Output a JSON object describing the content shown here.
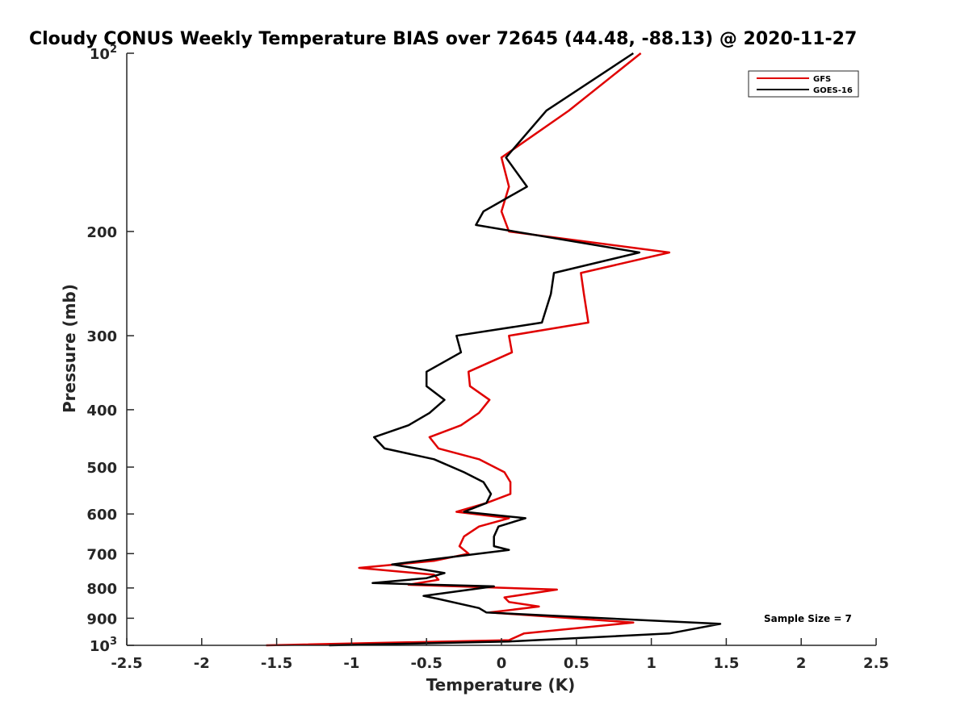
{
  "chart_data": {
    "type": "line",
    "title": "Cloudy CONUS Weekly Temperature BIAS over 72645 (44.48, -88.13) @ 2020-11-27",
    "xlabel": "Temperature (K)",
    "ylabel": "Pressure (mb)",
    "xlim": [
      -2.5,
      2.5
    ],
    "ylim": [
      100,
      1000
    ],
    "y_scale": "log",
    "y_reversed": true,
    "grid": false,
    "legend_position": "top-right",
    "x_ticks": [
      -2.5,
      -2,
      -1.5,
      -1,
      -0.5,
      0,
      0.5,
      1,
      1.5,
      2,
      2.5
    ],
    "x_tick_labels": [
      "-2.5",
      "-2",
      "-1.5",
      "-1",
      "-0.5",
      "0",
      "0.5",
      "1",
      "1.5",
      "2",
      "2.5"
    ],
    "y_ticks": [
      {
        "value": 100,
        "label": "10",
        "sup": "2"
      },
      {
        "value": 200,
        "label": "200",
        "sup": ""
      },
      {
        "value": 300,
        "label": "300",
        "sup": ""
      },
      {
        "value": 400,
        "label": "400",
        "sup": ""
      },
      {
        "value": 500,
        "label": "500",
        "sup": ""
      },
      {
        "value": 600,
        "label": "600",
        "sup": ""
      },
      {
        "value": 700,
        "label": "700",
        "sup": ""
      },
      {
        "value": 800,
        "label": "800",
        "sup": ""
      },
      {
        "value": 900,
        "label": "900",
        "sup": ""
      },
      {
        "value": 1000,
        "label": "10",
        "sup": "3"
      }
    ],
    "annotation": "Sample Size = 7",
    "series": [
      {
        "name": "GFS",
        "color": "#e00000",
        "points": [
          [
            0.93,
            100
          ],
          [
            0.45,
            125
          ],
          [
            0,
            150
          ],
          [
            0.05,
            168
          ],
          [
            0,
            185
          ],
          [
            0.05,
            200
          ],
          [
            1.12,
            217
          ],
          [
            0.53,
            235
          ],
          [
            0.55,
            255
          ],
          [
            0.58,
            285
          ],
          [
            0.05,
            300
          ],
          [
            0.07,
            320
          ],
          [
            -0.22,
            345
          ],
          [
            -0.21,
            365
          ],
          [
            -0.08,
            385
          ],
          [
            -0.15,
            405
          ],
          [
            -0.27,
            425
          ],
          [
            -0.48,
            445
          ],
          [
            -0.42,
            465
          ],
          [
            -0.15,
            485
          ],
          [
            0.02,
            510
          ],
          [
            0.06,
            530
          ],
          [
            0.06,
            555
          ],
          [
            -0.1,
            575
          ],
          [
            -0.3,
            595
          ],
          [
            0.05,
            610
          ],
          [
            -0.15,
            630
          ],
          [
            -0.25,
            655
          ],
          [
            -0.28,
            680
          ],
          [
            -0.22,
            700
          ],
          [
            -0.45,
            720
          ],
          [
            -0.95,
            740
          ],
          [
            -0.45,
            760
          ],
          [
            -0.42,
            775
          ],
          [
            -0.62,
            790
          ],
          [
            0.37,
            805
          ],
          [
            0.02,
            830
          ],
          [
            0.05,
            845
          ],
          [
            0.25,
            860
          ],
          [
            -0.08,
            880
          ],
          [
            0.88,
            915
          ],
          [
            0.15,
            955
          ],
          [
            0.05,
            980
          ],
          [
            -1.57,
            1000
          ]
        ]
      },
      {
        "name": "GOES-16",
        "color": "#000000",
        "points": [
          [
            0.88,
            100
          ],
          [
            0.3,
            125
          ],
          [
            0.03,
            150
          ],
          [
            0.17,
            168
          ],
          [
            -0.12,
            185
          ],
          [
            -0.17,
            195
          ],
          [
            0.92,
            217
          ],
          [
            0.35,
            235
          ],
          [
            0.33,
            255
          ],
          [
            0.27,
            285
          ],
          [
            -0.3,
            300
          ],
          [
            -0.27,
            320
          ],
          [
            -0.5,
            345
          ],
          [
            -0.5,
            365
          ],
          [
            -0.38,
            385
          ],
          [
            -0.48,
            405
          ],
          [
            -0.62,
            425
          ],
          [
            -0.85,
            445
          ],
          [
            -0.78,
            465
          ],
          [
            -0.45,
            485
          ],
          [
            -0.25,
            510
          ],
          [
            -0.12,
            530
          ],
          [
            -0.07,
            555
          ],
          [
            -0.1,
            575
          ],
          [
            -0.25,
            595
          ],
          [
            0.16,
            610
          ],
          [
            -0.02,
            630
          ],
          [
            -0.05,
            655
          ],
          [
            -0.05,
            680
          ],
          [
            0.05,
            690
          ],
          [
            -0.25,
            705
          ],
          [
            -0.73,
            730
          ],
          [
            -0.38,
            755
          ],
          [
            -0.5,
            770
          ],
          [
            -0.86,
            785
          ],
          [
            -0.05,
            795
          ],
          [
            -0.52,
            825
          ],
          [
            -0.42,
            835
          ],
          [
            -0.15,
            865
          ],
          [
            -0.1,
            880
          ],
          [
            1.46,
            920
          ],
          [
            1.12,
            955
          ],
          [
            0.05,
            985
          ],
          [
            -1.15,
            1000
          ]
        ]
      }
    ]
  }
}
